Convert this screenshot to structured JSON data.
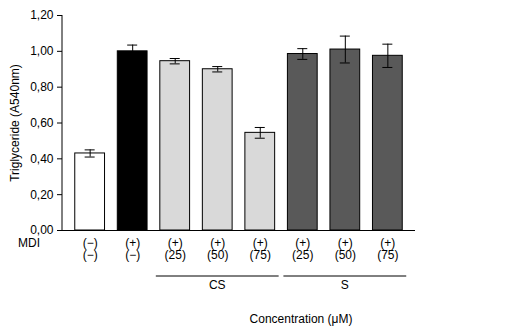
{
  "chart_data": {
    "type": "bar",
    "y_label": "Triglyceride (A540nm)",
    "x_label": "Concentration (μM)",
    "annotations": [
      "MDI"
    ],
    "categories": [
      "(−)\n(−)",
      "(+)\n(−)",
      "(+)\n(25)",
      "(+)\n(50)",
      "(+)\n(75)",
      "(+)\n(25)",
      "(+)\n(50)",
      "(+)\n(75)"
    ],
    "values": [
      0.43,
      1.0,
      0.945,
      0.9,
      0.545,
      0.985,
      1.01,
      0.975
    ],
    "errors": [
      0.02,
      0.035,
      0.015,
      0.015,
      0.03,
      0.03,
      0.075,
      0.065
    ],
    "colors": [
      "#ffffff",
      "#000000",
      "#d9d9d9",
      "#d9d9d9",
      "#d9d9d9",
      "#595959",
      "#595959",
      "#595959"
    ],
    "groups": [
      {
        "label": "CS",
        "start": 2,
        "end": 4
      },
      {
        "label": "S",
        "start": 5,
        "end": 7
      }
    ],
    "ylim": [
      0,
      1.2
    ],
    "yticks": [
      {
        "value": 0,
        "label": "0,00"
      },
      {
        "value": 0.2,
        "label": "0,20"
      },
      {
        "value": 0.4,
        "label": "0,40"
      },
      {
        "value": 0.6,
        "label": "0,60"
      },
      {
        "value": 0.8,
        "label": "0,80"
      },
      {
        "value": 1.0,
        "label": "1,00"
      },
      {
        "value": 1.2,
        "label": "1,20"
      }
    ],
    "grid": false
  }
}
